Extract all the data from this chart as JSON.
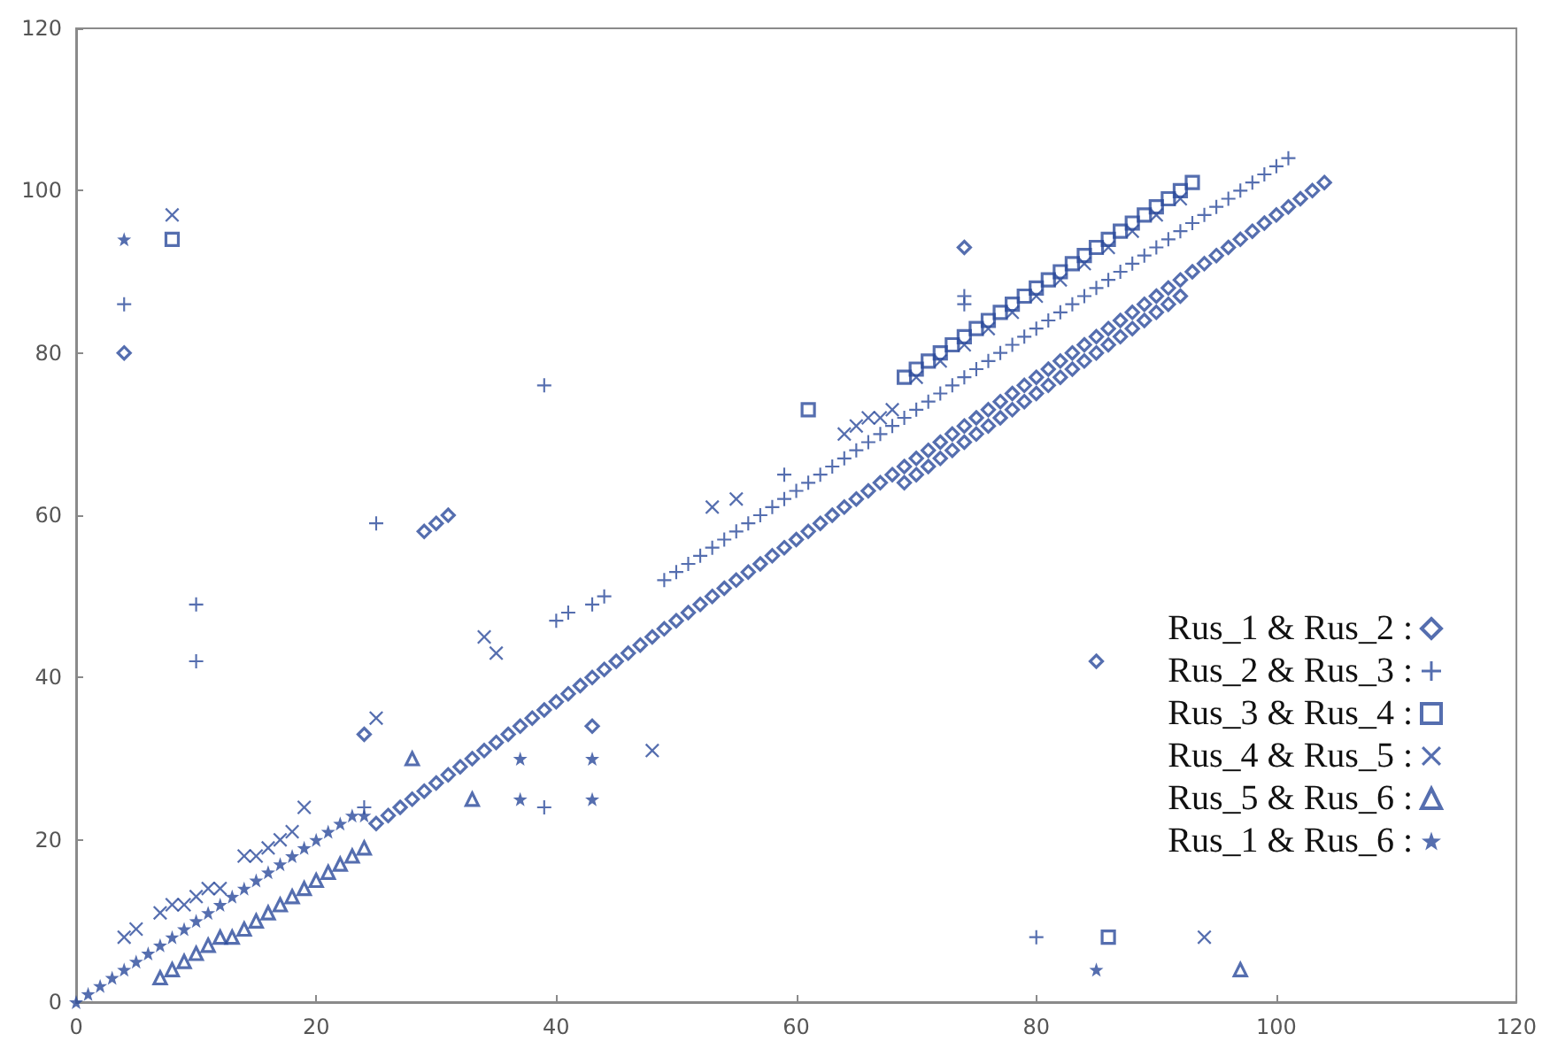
{
  "chart_data": {
    "type": "scatter",
    "xlim": [
      0,
      120
    ],
    "ylim": [
      0,
      120
    ],
    "xticks": [
      0,
      20,
      40,
      60,
      80,
      100,
      120
    ],
    "yticks": [
      0,
      20,
      40,
      60,
      80,
      100,
      120
    ],
    "legend": "bottom right",
    "series": [
      {
        "name": "Rus_1 & Rus_2 :",
        "color": "#2b4a9b",
        "marker": "diamond",
        "x": [
          25,
          26,
          27,
          28,
          29,
          30,
          31,
          32,
          33,
          34,
          35,
          36,
          37,
          38,
          39,
          40,
          41,
          42,
          43,
          44,
          45,
          46,
          47,
          48,
          49,
          50,
          51,
          52,
          53,
          54,
          55,
          56,
          57,
          58,
          59,
          60,
          61,
          62,
          63,
          64,
          65,
          66,
          67,
          68,
          69,
          70,
          71,
          72,
          73,
          74,
          75,
          76,
          77,
          78,
          79,
          80,
          81,
          82,
          83,
          84,
          85,
          86,
          87,
          88,
          89,
          90,
          91,
          92,
          93,
          94,
          95,
          96,
          97,
          98,
          99,
          100,
          101,
          102,
          103,
          104,
          69,
          70,
          71,
          72,
          73,
          74,
          75,
          76,
          77,
          78,
          79,
          80,
          81,
          82,
          83,
          84,
          85,
          86,
          87,
          88,
          89,
          90,
          91,
          92,
          4,
          24,
          29,
          30,
          31,
          43,
          74,
          85
        ],
        "values": [
          22,
          23,
          24,
          25,
          26,
          27,
          28,
          29,
          30,
          31,
          32,
          33,
          34,
          35,
          36,
          37,
          38,
          39,
          40,
          41,
          42,
          43,
          44,
          45,
          46,
          47,
          48,
          49,
          50,
          51,
          52,
          53,
          54,
          55,
          56,
          57,
          58,
          59,
          60,
          61,
          62,
          63,
          64,
          65,
          66,
          67,
          68,
          69,
          70,
          71,
          72,
          73,
          74,
          75,
          76,
          77,
          78,
          79,
          80,
          81,
          82,
          83,
          84,
          85,
          86,
          87,
          88,
          89,
          90,
          91,
          92,
          93,
          94,
          95,
          96,
          97,
          98,
          99,
          100,
          101,
          64,
          65,
          66,
          67,
          68,
          69,
          70,
          71,
          72,
          73,
          74,
          75,
          76,
          77,
          78,
          79,
          80,
          81,
          82,
          83,
          84,
          85,
          86,
          87,
          80,
          33,
          58,
          59,
          60,
          34,
          93,
          42
        ]
      },
      {
        "name": "Rus_2 & Rus_3 :",
        "color": "#2b4a9b",
        "marker": "cross",
        "x": [
          49,
          50,
          51,
          52,
          53,
          54,
          55,
          56,
          57,
          58,
          59,
          60,
          61,
          62,
          63,
          64,
          65,
          66,
          67,
          68,
          69,
          70,
          71,
          72,
          73,
          74,
          75,
          76,
          77,
          78,
          79,
          80,
          81,
          82,
          83,
          84,
          85,
          86,
          87,
          88,
          89,
          90,
          91,
          92,
          93,
          94,
          95,
          96,
          97,
          98,
          99,
          100,
          101,
          24,
          4,
          10,
          10,
          25,
          39,
          39,
          40,
          41,
          43,
          44,
          59,
          74,
          74,
          80
        ],
        "values": [
          52,
          53,
          54,
          55,
          56,
          57,
          58,
          59,
          60,
          61,
          62,
          63,
          64,
          65,
          66,
          67,
          68,
          69,
          70,
          71,
          72,
          73,
          74,
          75,
          76,
          77,
          78,
          79,
          80,
          81,
          82,
          83,
          84,
          85,
          86,
          87,
          88,
          89,
          90,
          91,
          92,
          93,
          94,
          95,
          96,
          97,
          98,
          99,
          100,
          101,
          102,
          103,
          104,
          24,
          86,
          49,
          42,
          59,
          76,
          24,
          47,
          48,
          49,
          50,
          65,
          86,
          87,
          8
        ]
      },
      {
        "name": "Rus_3 & Rus_4 :",
        "color": "#2b4a9b",
        "marker": "square",
        "x": [
          69,
          70,
          71,
          72,
          73,
          74,
          75,
          76,
          77,
          78,
          79,
          80,
          81,
          82,
          83,
          84,
          85,
          86,
          87,
          88,
          89,
          90,
          91,
          92,
          93,
          8,
          61,
          86
        ],
        "values": [
          77,
          78,
          79,
          80,
          81,
          82,
          83,
          84,
          85,
          86,
          87,
          88,
          89,
          90,
          91,
          92,
          93,
          94,
          95,
          96,
          97,
          98,
          99,
          100,
          101,
          94,
          73,
          8
        ]
      },
      {
        "name": "Rus_4 & Rus_5 :",
        "color": "#2b4a9b",
        "marker": "x",
        "x": [
          4,
          5,
          7,
          8,
          9,
          10,
          11,
          12,
          14,
          15,
          16,
          17,
          18,
          19,
          8,
          25,
          34,
          35,
          48,
          53,
          55,
          94,
          64,
          65,
          66,
          67,
          68,
          70,
          72,
          74,
          76,
          78,
          80,
          82,
          84,
          86,
          88,
          90,
          92
        ],
        "values": [
          8,
          9,
          11,
          12,
          12,
          13,
          14,
          14,
          18,
          18,
          19,
          20,
          21,
          24,
          97,
          35,
          45,
          43,
          31,
          61,
          62,
          8,
          70,
          71,
          72,
          72,
          73,
          77,
          79,
          81,
          83,
          85,
          87,
          89,
          91,
          93,
          95,
          97,
          99
        ]
      },
      {
        "name": "Rus_5 & Rus_6 :",
        "color": "#2b4a9b",
        "marker": "triangle",
        "x": [
          7,
          8,
          9,
          10,
          11,
          12,
          13,
          14,
          15,
          16,
          17,
          18,
          19,
          20,
          21,
          22,
          23,
          24,
          28,
          33,
          97
        ],
        "values": [
          3,
          4,
          5,
          6,
          7,
          8,
          8,
          9,
          10,
          11,
          12,
          13,
          14,
          15,
          16,
          17,
          18,
          19,
          30,
          25,
          4
        ]
      },
      {
        "name": "Rus_1 & Rus_6 :",
        "color": "#2b4a9b",
        "marker": "star",
        "x": [
          0,
          1,
          2,
          3,
          4,
          5,
          6,
          7,
          8,
          9,
          10,
          11,
          12,
          13,
          14,
          15,
          16,
          17,
          18,
          19,
          20,
          21,
          22,
          23,
          24,
          4,
          37,
          37,
          43,
          43,
          85
        ],
        "values": [
          0,
          1,
          2,
          3,
          4,
          5,
          6,
          7,
          8,
          9,
          10,
          11,
          12,
          13,
          14,
          15,
          16,
          17,
          18,
          19,
          20,
          21,
          22,
          23,
          23,
          94,
          30,
          25,
          30,
          25,
          4
        ]
      }
    ]
  }
}
